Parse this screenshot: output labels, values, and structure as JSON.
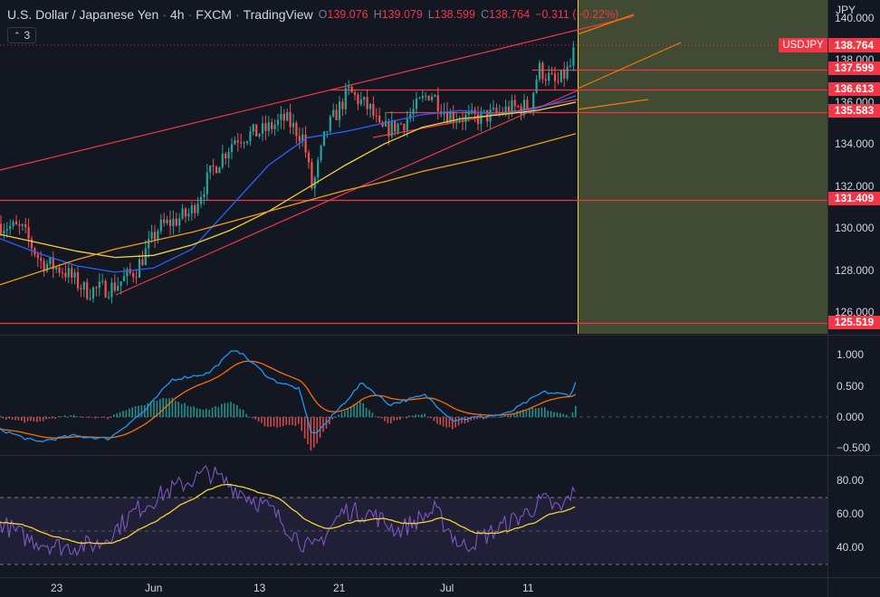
{
  "header": {
    "symbol": "U.S. Dollar / Japanese Yen",
    "interval": "4h",
    "exchange": "FXCM",
    "source": "TradingView",
    "open_label": "O",
    "open": "139.076",
    "high_label": "H",
    "high": "139.079",
    "low_label": "L",
    "low": "138.599",
    "close_label": "C",
    "close": "138.764",
    "change": "−0.311 (−0.22%)"
  },
  "toolbar": {
    "indicator_count": "3"
  },
  "price_axis": {
    "currency": "JPY",
    "ticks": [
      "126.000",
      "128.000",
      "130.000",
      "132.000",
      "134.000",
      "136.000",
      "138.000",
      "140.000"
    ],
    "levels": [
      "137.599",
      "136.613",
      "135.583",
      "131.409",
      "125.519"
    ],
    "current_price": "138.764",
    "current_symbol": "USDJPY"
  },
  "macd_axis": {
    "ticks": [
      "1.000",
      "0.500",
      "0.000",
      "−0.500"
    ]
  },
  "rsi_axis": {
    "ticks": [
      "80.00",
      "60.00",
      "40.00"
    ]
  },
  "time_axis": {
    "labels": [
      "23",
      "Jun",
      "13",
      "21",
      "Jul",
      "11"
    ]
  },
  "colors": {
    "background": "#131722",
    "up": "#26a69a",
    "down": "#ef5350",
    "level_line": "#f23645",
    "trend_line": "#f23645",
    "orange_line": "#f57c00",
    "ma_blue": "#2962ff",
    "ma_yellow": "#f7d038",
    "ma_orange": "#f39c12",
    "projection_fill": "#4a5336",
    "rsi_line": "#7e57c2",
    "rsi_ma": "#f7d038",
    "macd_line": "#2196f3",
    "signal_line": "#ff6d00"
  },
  "chart_data": {
    "type": "candlestick",
    "symbol": "USDJPY",
    "interval": "4h",
    "price_range": [
      125,
      141
    ],
    "horizontal_levels": [
      137.599,
      136.613,
      135.583,
      131.409,
      125.519
    ],
    "current_price": 138.764,
    "moving_averages": [
      {
        "color": "#2962ff",
        "values": [
          129.5,
          128.8,
          128.2,
          127.9,
          128.1,
          129.0,
          131.0,
          133.0,
          134.3,
          134.6,
          135.0,
          135.4,
          135.6,
          135.4,
          135.7,
          136.3
        ]
      },
      {
        "color": "#f7d038",
        "values": [
          129.7,
          129.3,
          128.9,
          128.6,
          128.7,
          129.2,
          129.9,
          130.8,
          131.9,
          133.0,
          134.0,
          134.8,
          135.2,
          135.4,
          135.6,
          136.0
        ]
      },
      {
        "color": "#f39c12",
        "values": [
          127.3,
          127.9,
          128.5,
          129.0,
          129.4,
          129.8,
          130.3,
          130.8,
          131.3,
          131.8,
          132.2,
          132.7,
          133.1,
          133.5,
          134.0,
          134.5
        ]
      }
    ],
    "macd_range": [
      -0.7,
      1.2
    ],
    "rsi_range": [
      25,
      95
    ],
    "rsi_bands": [
      70,
      50,
      30
    ]
  }
}
